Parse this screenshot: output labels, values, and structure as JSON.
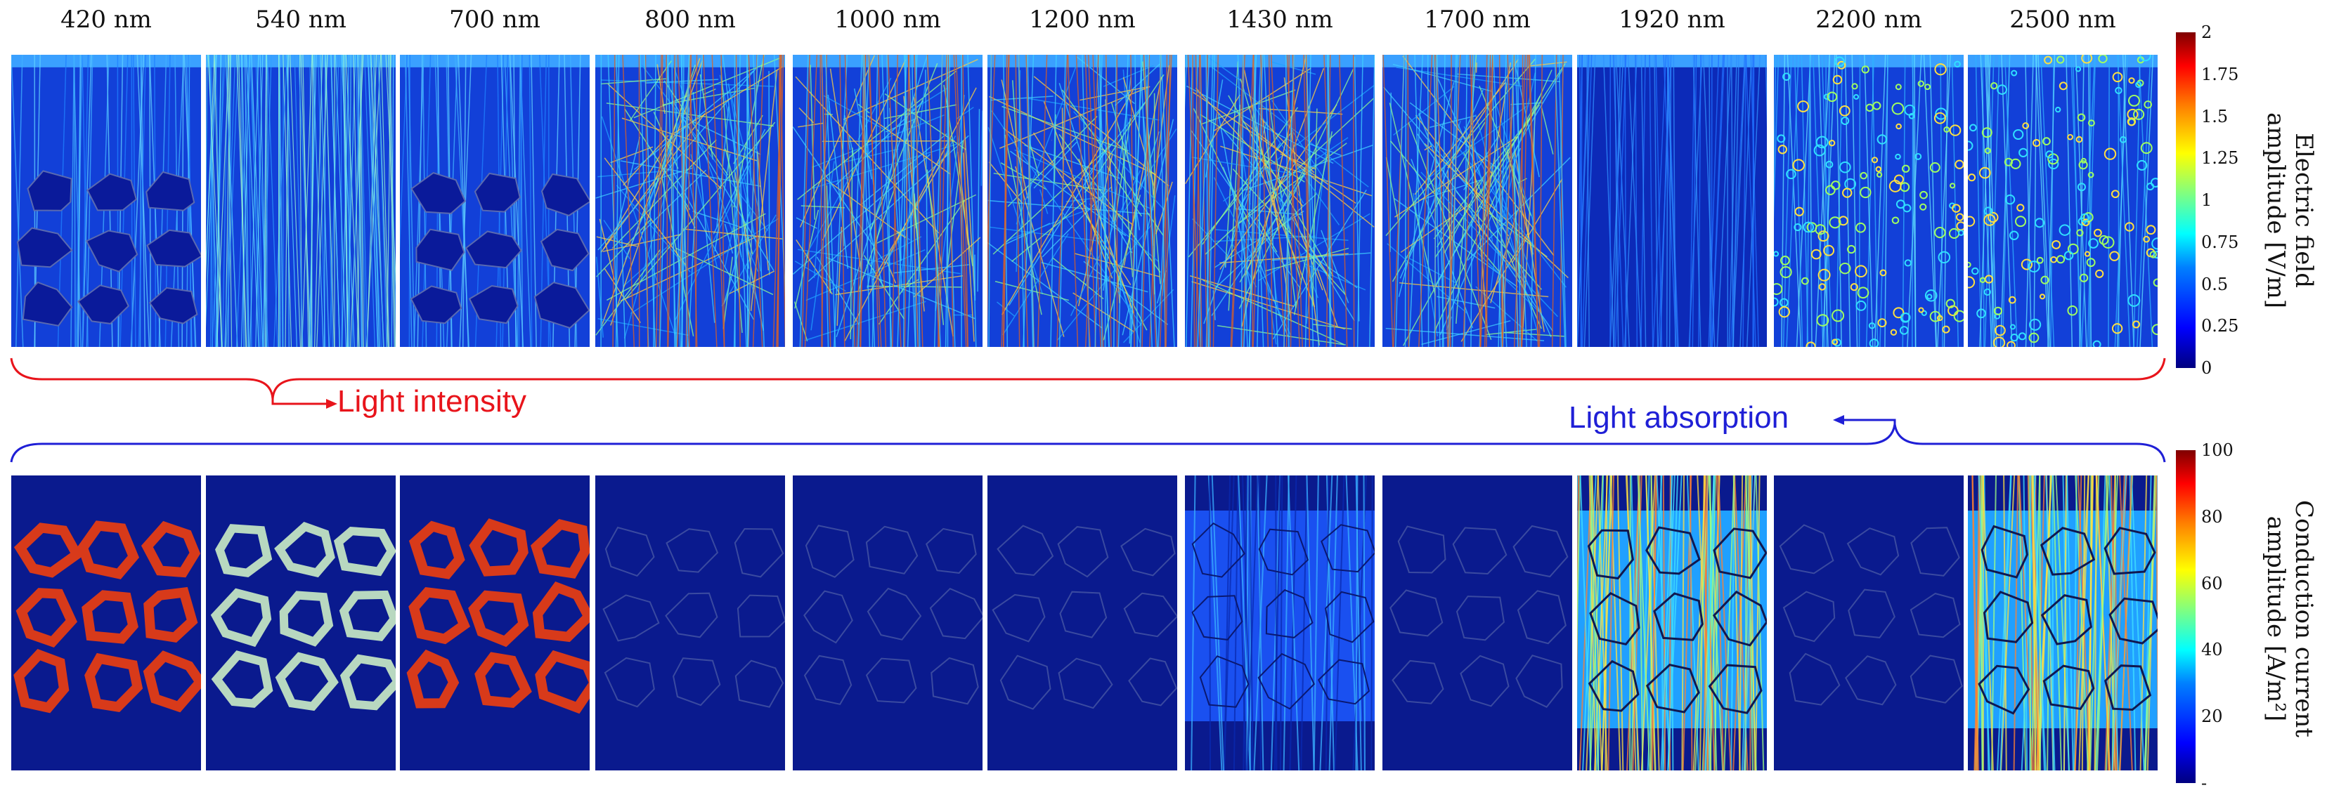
{
  "figure": {
    "wavelength_labels": [
      "420 nm",
      "540 nm",
      "700 nm",
      "800 nm",
      "1000 nm",
      "1200 nm",
      "1430 nm",
      "1700 nm",
      "1920 nm",
      "2200 nm",
      "2500 nm"
    ],
    "top_row": {
      "colorbar_title_line1": "Electric field",
      "colorbar_title_line2": "amplitude [V/m]",
      "colorbar_ticks": [
        "2",
        "1.75",
        "1.5",
        "1.25",
        "1",
        "0.75",
        "0.5",
        "0.25",
        "0"
      ],
      "colorbar_range": [
        0,
        2
      ]
    },
    "bottom_row": {
      "colorbar_title_line1": "Conduction current",
      "colorbar_title_line2": "amplitude [A/m²]",
      "colorbar_ticks": [
        "100",
        "80",
        "60",
        "40",
        "20",
        "-"
      ],
      "colorbar_range": [
        0,
        100
      ]
    },
    "annotations": {
      "light_intensity": "Light intensity",
      "light_absorption": "Light absorption",
      "intensity_color": "#e8141b",
      "absorption_color": "#1f1fd6"
    },
    "panel_styles": {
      "top": [
        "flat",
        "fibers",
        "flat",
        "mesh",
        "mesh",
        "mesh",
        "mesh",
        "mesh",
        "dim",
        "rings",
        "rings"
      ],
      "bottom": [
        "hot",
        "warm",
        "hot",
        "empty",
        "empty",
        "empty",
        "glow",
        "empty",
        "bright",
        "empty",
        "bright"
      ]
    },
    "colors": {
      "background_dark": "#0a1a8e",
      "jet_low": "#00007f",
      "jet_high": "#7f0000"
    }
  }
}
